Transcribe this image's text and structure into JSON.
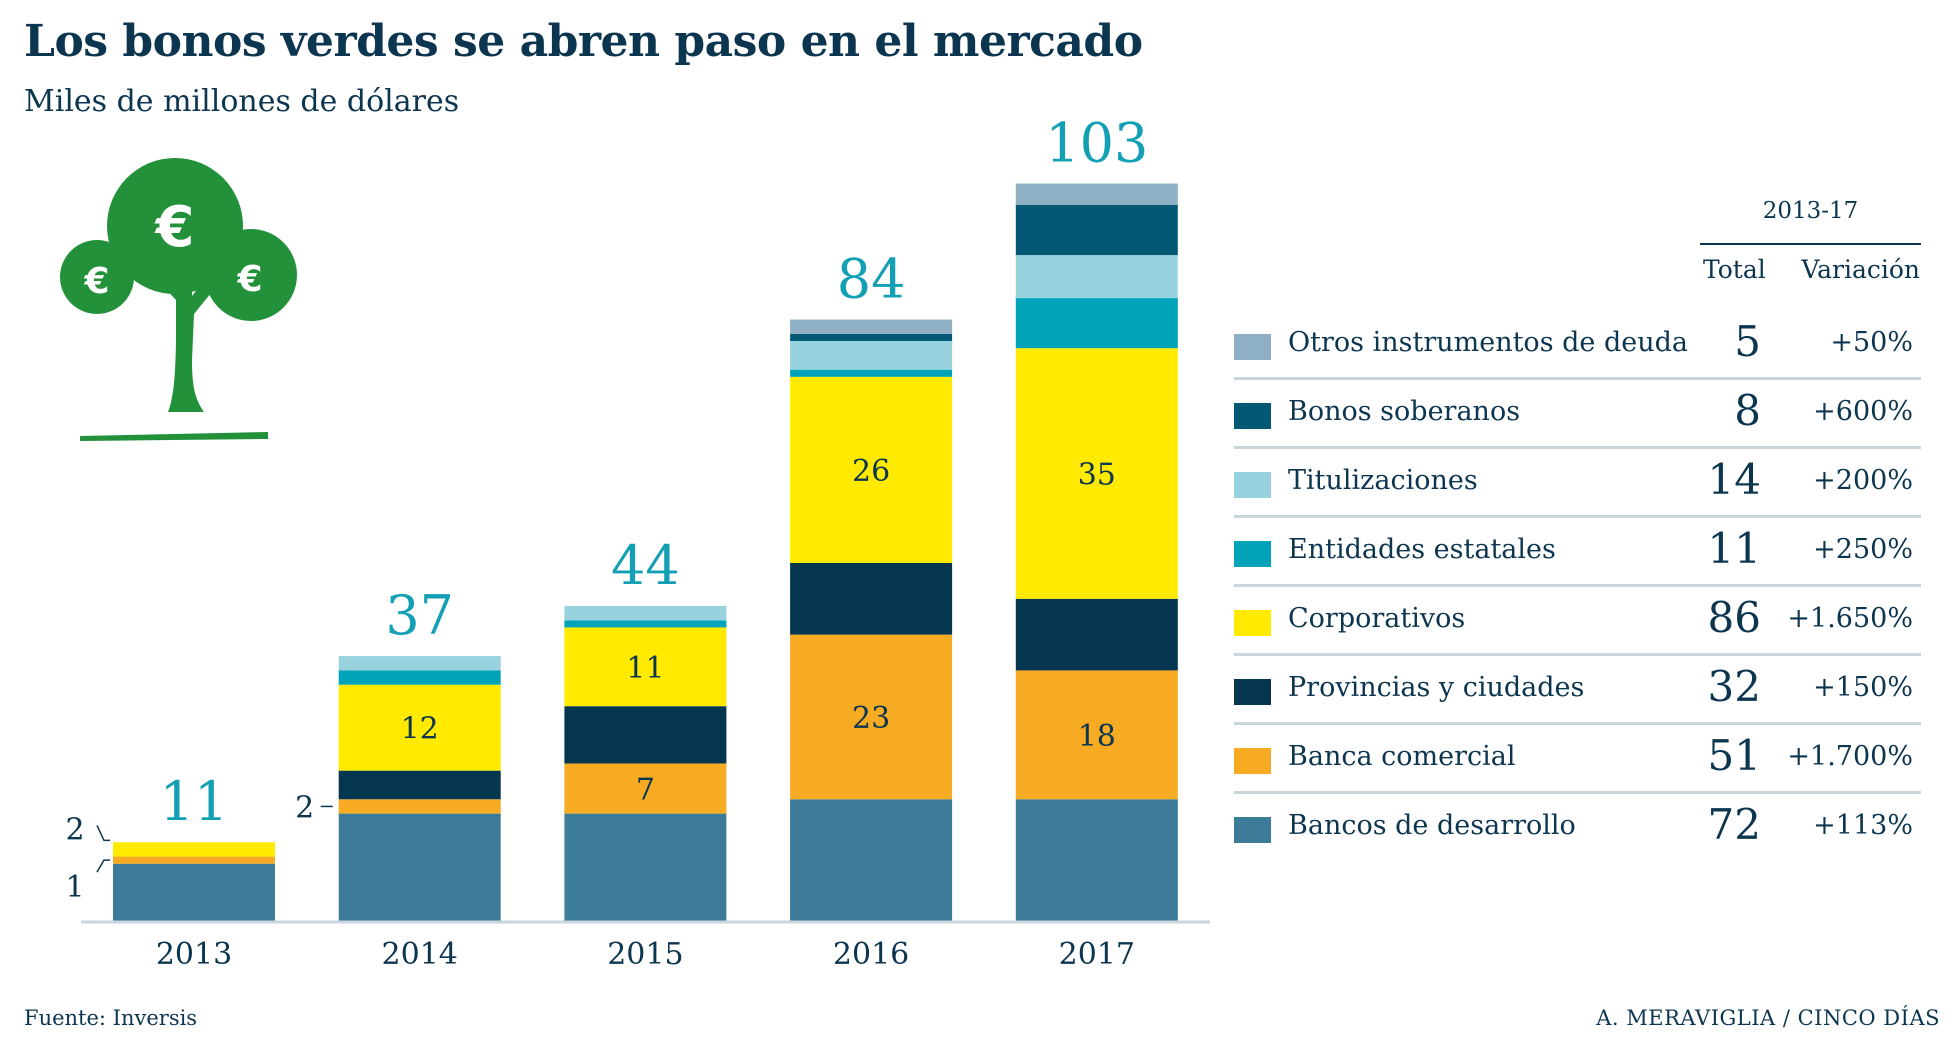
{
  "header": {
    "title": "Los bonos verdes se abren paso en el mercado",
    "subtitle": "Miles de millones de dólares"
  },
  "footer": {
    "source": "Fuente: Inversis",
    "credit": "A. MERAVIGLIA / CINCO DÍAS"
  },
  "illustration": {
    "icon": "euro-money-tree-icon",
    "color": "#23913a"
  },
  "legend_table": {
    "period": "2013-17",
    "col_total": "Total",
    "col_variation": "Variación",
    "rows": [
      {
        "label": "Otros instrumentos de deuda",
        "total": "5",
        "variation": "+50%",
        "color": "#8eafc4"
      },
      {
        "label": "Bonos soberanos",
        "total": "8",
        "variation": "+600%",
        "color": "#035873"
      },
      {
        "label": "Titulizaciones",
        "total": "14",
        "variation": "+200%",
        "color": "#99d2df"
      },
      {
        "label": "Entidades estatales",
        "total": "11",
        "variation": "+250%",
        "color": "#00a3b8"
      },
      {
        "label": "Corporativos",
        "total": "86",
        "variation": "+1.650%",
        "color": "#ffea00"
      },
      {
        "label": "Provincias y ciudades",
        "total": "32",
        "variation": "+150%",
        "color": "#04364f"
      },
      {
        "label": "Banca comercial",
        "total": "51",
        "variation": "+1.700%",
        "color": "#f6ab23"
      },
      {
        "label": "Bancos de desarrollo",
        "total": "72",
        "variation": "+113%",
        "color": "#3c7c98"
      }
    ]
  },
  "chart_data": {
    "type": "bar",
    "stacked": true,
    "title": "Los bonos verdes se abren paso en el mercado",
    "subtitle": "Miles de millones de dólares",
    "xlabel": "",
    "ylabel": "",
    "ylim": [
      0,
      103
    ],
    "grid": false,
    "legend_position": "right",
    "categories": [
      "2013",
      "2014",
      "2015",
      "2016",
      "2017"
    ],
    "totals": [
      11,
      37,
      44,
      84,
      103
    ],
    "total_label_color": "#13a0b5",
    "series": [
      {
        "name": "Bancos de desarrollo",
        "color": "#3c7c98",
        "values": [
          8,
          15,
          15,
          17,
          17
        ]
      },
      {
        "name": "Banca comercial",
        "color": "#f6ab23",
        "values": [
          1,
          2,
          7,
          23,
          18
        ]
      },
      {
        "name": "Provincias y ciudades",
        "color": "#04364f",
        "values": [
          0,
          4,
          8,
          10,
          10
        ]
      },
      {
        "name": "Corporativos",
        "color": "#ffea00",
        "values": [
          2,
          12,
          11,
          26,
          35
        ]
      },
      {
        "name": "Entidades estatales",
        "color": "#00a3b8",
        "values": [
          0,
          2,
          1,
          1,
          7
        ]
      },
      {
        "name": "Titulizaciones",
        "color": "#99d2df",
        "values": [
          0,
          2,
          2,
          4,
          6
        ]
      },
      {
        "name": "Bonos soberanos",
        "color": "#035873",
        "values": [
          0,
          0,
          0,
          1,
          7
        ]
      },
      {
        "name": "Otros instrumentos de deuda",
        "color": "#8eafc4",
        "values": [
          0,
          0,
          0,
          2,
          3
        ]
      }
    ],
    "data_labels": [
      {
        "category": "2014",
        "series": "Corporativos",
        "text": "12",
        "position": "inside"
      },
      {
        "category": "2015",
        "series": "Corporativos",
        "text": "11",
        "position": "inside"
      },
      {
        "category": "2015",
        "series": "Banca comercial",
        "text": "7",
        "position": "inside"
      },
      {
        "category": "2016",
        "series": "Corporativos",
        "text": "26",
        "position": "inside"
      },
      {
        "category": "2016",
        "series": "Banca comercial",
        "text": "23",
        "position": "inside"
      },
      {
        "category": "2017",
        "series": "Corporativos",
        "text": "35",
        "position": "inside"
      },
      {
        "category": "2017",
        "series": "Banca comercial",
        "text": "18",
        "position": "inside"
      }
    ],
    "annotations": [
      {
        "category": "2013",
        "series": "Corporativos",
        "text": "2",
        "position": "left"
      },
      {
        "category": "2013",
        "series": "Banca comercial",
        "text": "1",
        "position": "left"
      },
      {
        "category": "2014",
        "series": "Banca comercial",
        "text": "2",
        "position": "left"
      }
    ]
  }
}
